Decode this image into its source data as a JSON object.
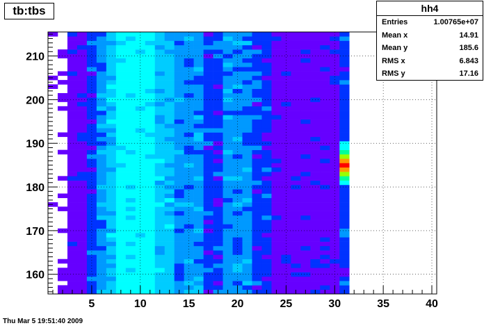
{
  "pad_title": "tb:tbs",
  "stats": {
    "name": "hh4",
    "rows": [
      {
        "label": "Entries",
        "value": "1.00765e+07"
      },
      {
        "label": "Mean x",
        "value": "14.91"
      },
      {
        "label": "Mean y",
        "value": "185.6"
      },
      {
        "label": "RMS x",
        "value": "6.843"
      },
      {
        "label": "RMS y",
        "value": "17.16"
      }
    ]
  },
  "footer": "Thu Mar  5 19:51:40 2009",
  "chart_data": {
    "type": "heatmap",
    "title": "tb:tbs",
    "xlabel": "",
    "ylabel": "",
    "xlim": [
      0.5,
      40.5
    ],
    "ylim": [
      155.5,
      215.5
    ],
    "x_ticks": [
      5,
      10,
      15,
      20,
      25,
      30,
      35,
      40
    ],
    "y_ticks": [
      160,
      170,
      180,
      190,
      200,
      210
    ],
    "grid": true,
    "palette": [
      "#6600ff",
      "#0033ff",
      "#0099ff",
      "#00ccff",
      "#00ffff",
      "#00ff99",
      "#99ff00",
      "#ff9900",
      "#ff0000"
    ],
    "column_levels": [
      {
        "x": 3,
        "level": 0
      },
      {
        "x": 4,
        "level": 0
      },
      {
        "x": 5,
        "level": 1
      },
      {
        "x": 6,
        "level": 2
      },
      {
        "x": 7,
        "level": 3
      },
      {
        "x": 8,
        "level": 4
      },
      {
        "x": 9,
        "level": 4
      },
      {
        "x": 10,
        "level": 4
      },
      {
        "x": 11,
        "level": 4
      },
      {
        "x": 12,
        "level": 3
      },
      {
        "x": 13,
        "level": 3
      },
      {
        "x": 14,
        "level": 2
      },
      {
        "x": 15,
        "level": 2
      },
      {
        "x": 16,
        "level": 2
      },
      {
        "x": 17,
        "level": 1
      },
      {
        "x": 18,
        "level": 1
      },
      {
        "x": 19,
        "level": 2
      },
      {
        "x": 20,
        "level": 2
      },
      {
        "x": 21,
        "level": 2
      },
      {
        "x": 22,
        "level": 1
      },
      {
        "x": 23,
        "level": 1
      },
      {
        "x": 24,
        "level": 0
      },
      {
        "x": 25,
        "level": 0
      },
      {
        "x": 26,
        "level": 0
      },
      {
        "x": 27,
        "level": 0
      },
      {
        "x": 28,
        "level": 0
      },
      {
        "x": 29,
        "level": 0
      },
      {
        "x": 30,
        "level": 0
      },
      {
        "x": 31,
        "level": 1
      }
    ],
    "hot_spot": {
      "x": 31,
      "y_range": [
        181,
        190
      ],
      "peak_y": 185
    }
  }
}
